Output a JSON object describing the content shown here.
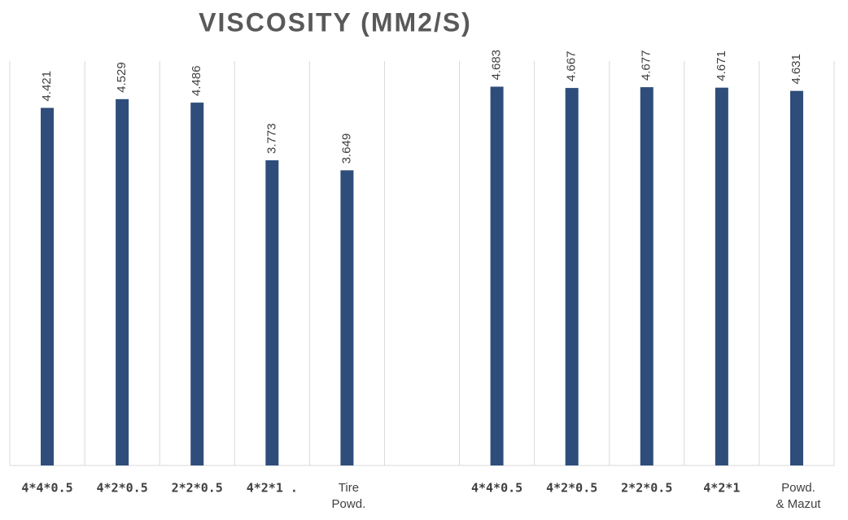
{
  "chart_data": {
    "type": "bar",
    "title": "VISCOSITY (MM2/S)",
    "categories": [
      [
        "4*4*0.5"
      ],
      [
        "4*2*0.5"
      ],
      [
        "2*2*0.5"
      ],
      [
        "4*2*1 ."
      ],
      [
        "Tire",
        "Powd."
      ],
      null,
      [
        "4*4*0.5"
      ],
      [
        "4*2*0.5"
      ],
      [
        "2*2*0.5"
      ],
      [
        "4*2*1"
      ],
      [
        "Powd.",
        "& Mazut"
      ]
    ],
    "values": [
      4.421,
      4.529,
      4.486,
      3.773,
      3.649,
      null,
      4.683,
      4.667,
      4.677,
      4.671,
      4.631
    ],
    "color": "#2e4d7b",
    "ylim": [
      0,
      5
    ],
    "grid": true
  }
}
